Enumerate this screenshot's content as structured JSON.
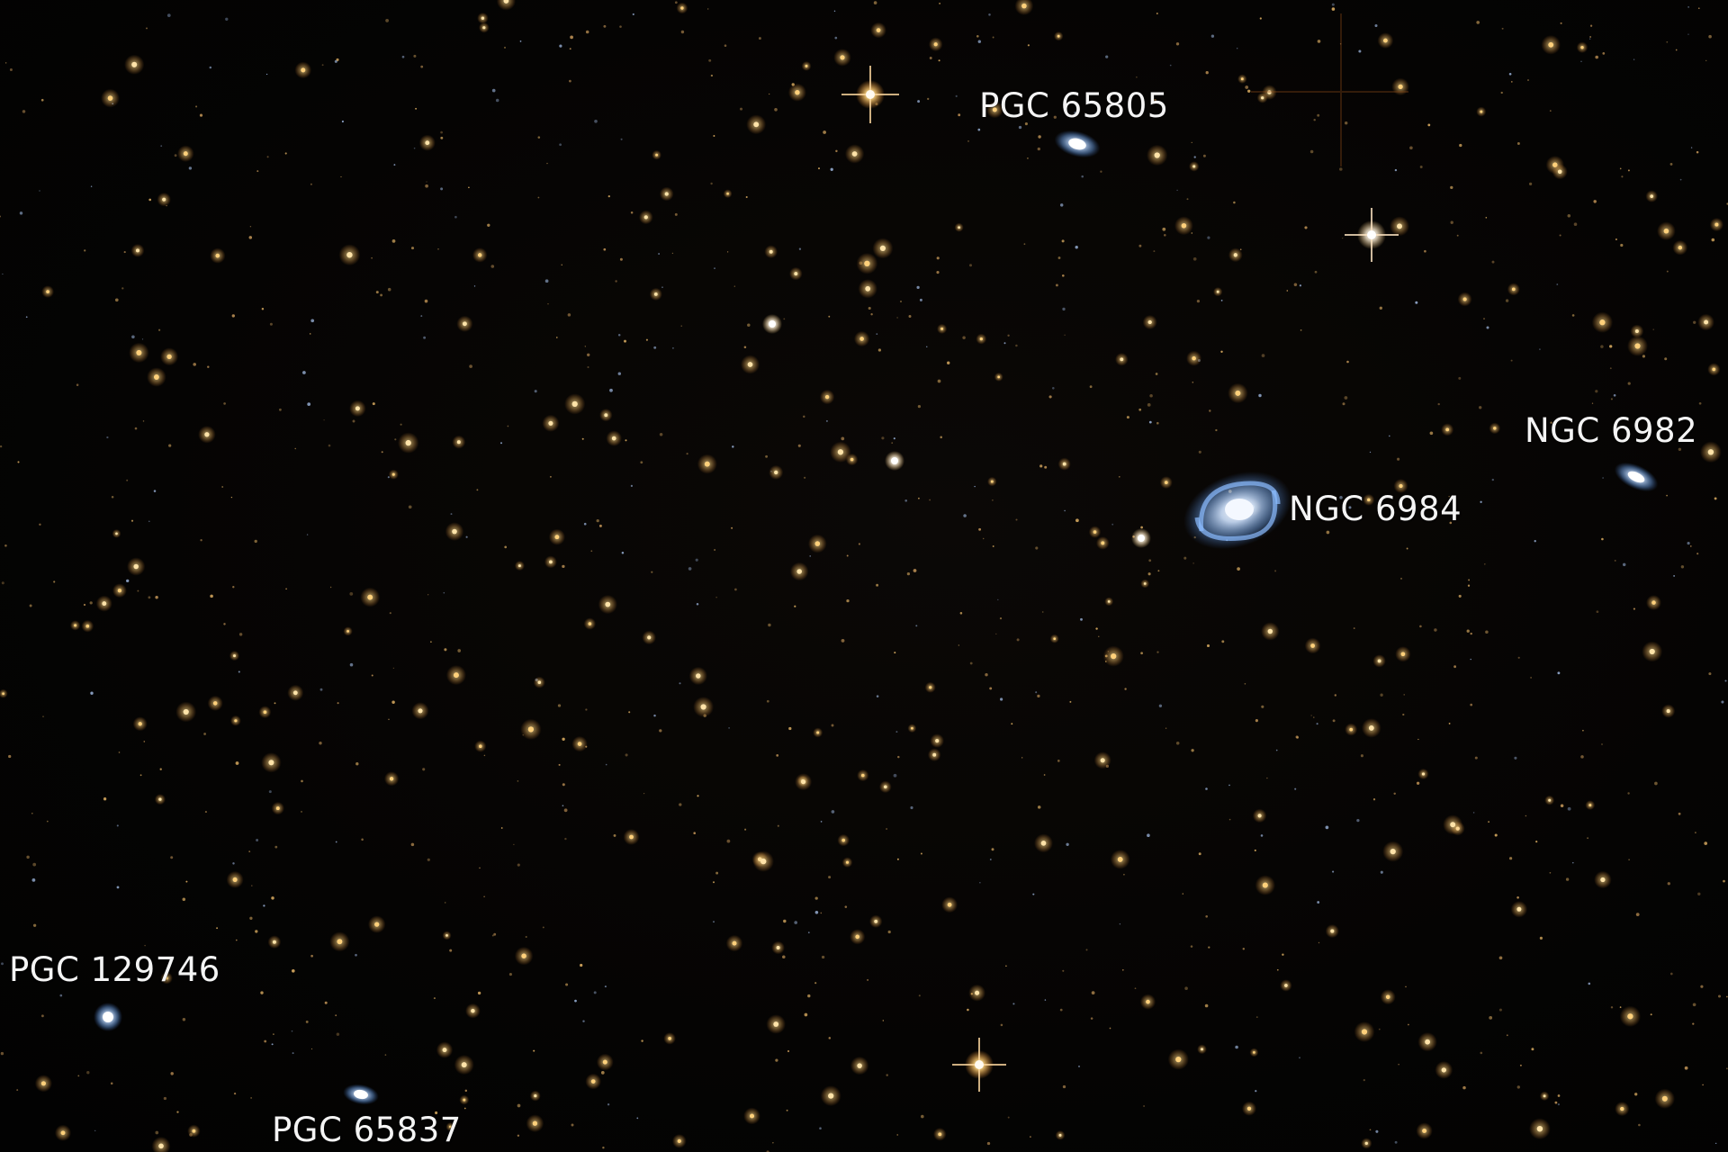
{
  "labels": {
    "pgc65805": "PGC 65805",
    "ngc6984": "NGC 6984",
    "ngc6982": "NGC 6982",
    "pgc129746": "PGC 129746",
    "pgc65837": "PGC 65837"
  },
  "colors": {
    "star_warm": "#ffd27a",
    "star_core": "#fff6e0",
    "galaxy_blue": "#7fb8ff",
    "galaxy_core": "#f4f8ff"
  }
}
